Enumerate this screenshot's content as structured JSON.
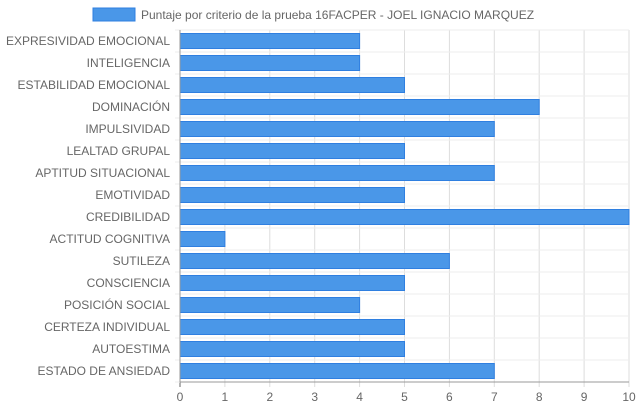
{
  "chart_data": {
    "type": "bar",
    "orientation": "horizontal",
    "categories": [
      "EXPRESIVIDAD EMOCIONAL",
      "INTELIGENCIA",
      "ESTABILIDAD EMOCIONAL",
      "DOMINACIÓN",
      "IMPULSIVIDAD",
      "LEALTAD GRUPAL",
      "APTITUD SITUACIONAL",
      "EMOTIVIDAD",
      "CREDIBILIDAD",
      "ACTITUD COGNITIVA",
      "SUTILEZA",
      "CONSCIENCIA",
      "POSICIÓN SOCIAL",
      "CERTEZA INDIVIDUAL",
      "AUTOESTIMA",
      "ESTADO DE ANSIEDAD"
    ],
    "series": [
      {
        "name": "Puntaje por criterio de la prueba 16FACPER - JOEL IGNACIO MARQUEZ",
        "values": [
          4,
          4,
          5,
          8,
          7,
          5,
          7,
          5,
          10,
          1,
          6,
          5,
          4,
          5,
          5,
          7
        ],
        "color": "#4a97e8",
        "border_color": "#2f7fe0"
      }
    ],
    "xlim": [
      0,
      10
    ],
    "x_ticks": [
      "0",
      "1",
      "2",
      "3",
      "4",
      "5",
      "6",
      "7",
      "8",
      "9",
      "10"
    ],
    "grid": true,
    "legend_position": "top"
  }
}
